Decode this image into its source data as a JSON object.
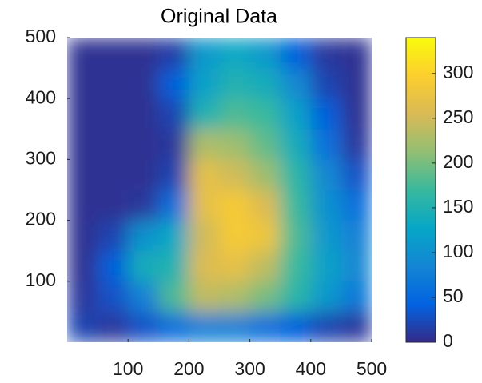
{
  "chart_data": {
    "type": "heatmap",
    "title": "Original Data",
    "xlim": [
      0,
      500
    ],
    "ylim": [
      0,
      500
    ],
    "xticks": [
      100,
      200,
      300,
      400,
      500
    ],
    "yticks": [
      100,
      200,
      300,
      400,
      500
    ],
    "clim": [
      0,
      340
    ],
    "cticks": [
      0,
      50,
      100,
      150,
      200,
      250,
      300
    ],
    "colormap": [
      "#352a87",
      "#0363e1",
      "#1485d4",
      "#06a7c6",
      "#38b99e",
      "#92bf73",
      "#d9ba56",
      "#fcce2e",
      "#f9fb0e"
    ],
    "z": [
      [
        20,
        10,
        30,
        60,
        80,
        80,
        60,
        40,
        20,
        10
      ],
      [
        10,
        30,
        80,
        180,
        240,
        230,
        200,
        160,
        110,
        70
      ],
      [
        5,
        40,
        140,
        150,
        260,
        270,
        240,
        170,
        120,
        90
      ],
      [
        5,
        20,
        100,
        130,
        250,
        290,
        280,
        180,
        110,
        80
      ],
      [
        5,
        5,
        10,
        60,
        270,
        290,
        260,
        170,
        100,
        60
      ],
      [
        5,
        5,
        5,
        20,
        270,
        250,
        220,
        160,
        90,
        30
      ],
      [
        5,
        5,
        5,
        10,
        230,
        220,
        190,
        140,
        60,
        10
      ],
      [
        5,
        5,
        5,
        20,
        150,
        180,
        170,
        120,
        40,
        5
      ],
      [
        5,
        5,
        5,
        40,
        120,
        150,
        140,
        90,
        20,
        5
      ],
      [
        5,
        5,
        5,
        15,
        110,
        130,
        110,
        40,
        10,
        5
      ]
    ]
  }
}
